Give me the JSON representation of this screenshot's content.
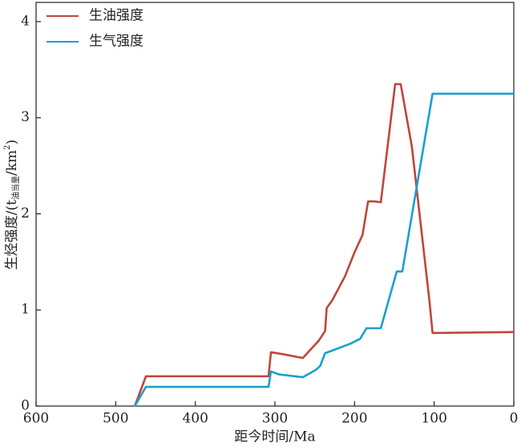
{
  "chart_data": {
    "type": "line",
    "x_label": "距今时间/Ma",
    "y_label_parts": [
      "生烃强度/(t",
      "油当量",
      "/km",
      "2",
      ")"
    ],
    "xlim": [
      600,
      0
    ],
    "xticks": [
      600,
      500,
      400,
      300,
      200,
      100,
      0
    ],
    "ylim": [
      0,
      4.2
    ],
    "yticks": [
      0,
      1,
      2,
      3,
      4
    ],
    "legend": "upper left",
    "series": [
      {
        "name": "生油强度",
        "color": "#c0453a",
        "x": [
          476,
          462,
          308,
          305,
          290,
          265,
          245,
          237,
          235,
          228,
          212,
          200,
          190,
          183,
          175,
          167,
          149,
          142,
          128,
          106,
          102,
          0
        ],
        "values": [
          0,
          0.31,
          0.31,
          0.56,
          0.54,
          0.5,
          0.68,
          0.78,
          1.02,
          1.1,
          1.35,
          1.6,
          1.78,
          2.13,
          2.13,
          2.12,
          3.35,
          3.35,
          2.7,
          1.1,
          0.76,
          0.77
        ]
      },
      {
        "name": "生气强度",
        "color": "#1b9fd0",
        "x": [
          476,
          462,
          308,
          305,
          295,
          265,
          248,
          243,
          237,
          205,
          193,
          185,
          167,
          147,
          140,
          102,
          0
        ],
        "values": [
          0,
          0.2,
          0.2,
          0.36,
          0.33,
          0.3,
          0.38,
          0.42,
          0.55,
          0.65,
          0.7,
          0.81,
          0.81,
          1.4,
          1.4,
          3.25,
          3.25
        ]
      }
    ]
  }
}
